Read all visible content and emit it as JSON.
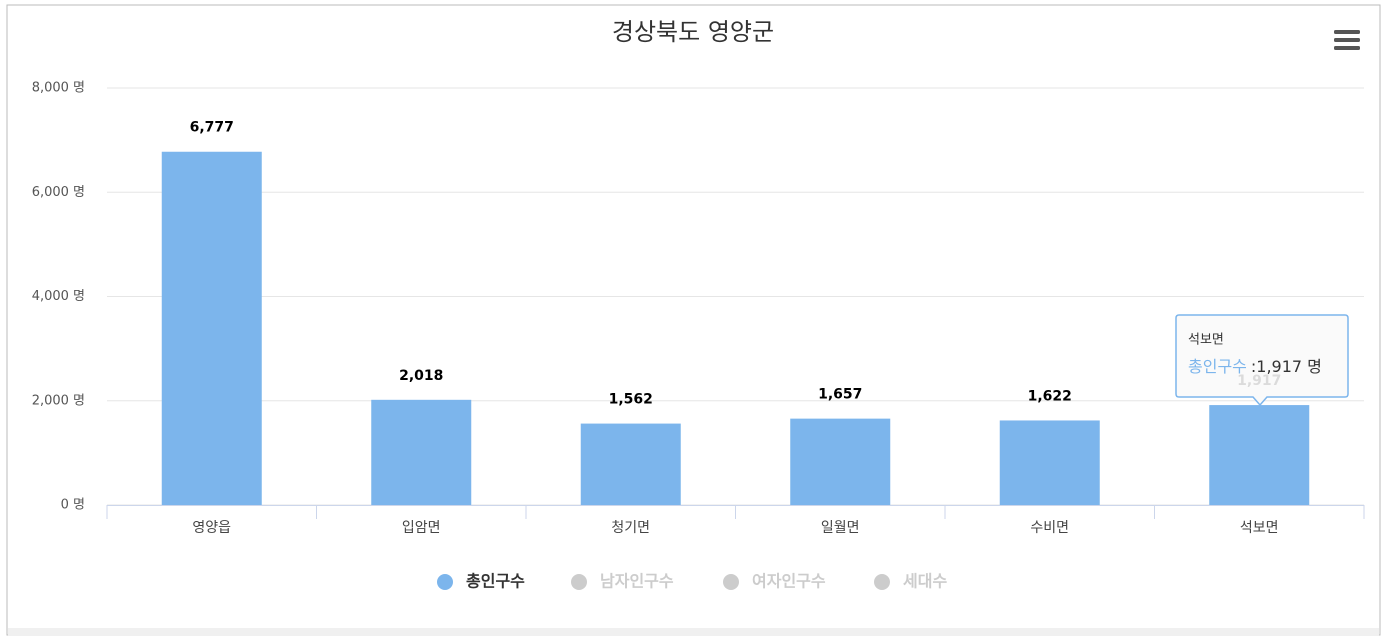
{
  "chart_data": {
    "type": "bar",
    "title": "경상북도 영양군",
    "categories": [
      "영양읍",
      "입암면",
      "청기면",
      "일월면",
      "수비면",
      "석보면"
    ],
    "series": [
      {
        "name": "총인구수",
        "color": "#7cb5ec",
        "values": [
          6777,
          2018,
          1562,
          1657,
          1622,
          1917
        ],
        "value_labels": [
          "6,777",
          "2,018",
          "1,562",
          "1,657",
          "1,622",
          "1,917"
        ]
      }
    ],
    "hidden_series": [
      {
        "name": "남자인구수"
      },
      {
        "name": "여자인구수"
      },
      {
        "name": "세대수"
      }
    ],
    "ylim": [
      0,
      8000
    ],
    "yticks": [
      {
        "value": 0,
        "label": "0 명"
      },
      {
        "value": 2000,
        "label": "2,000 명"
      },
      {
        "value": 4000,
        "label": "4,000 명"
      },
      {
        "value": 6000,
        "label": "6,000 명"
      },
      {
        "value": 8000,
        "label": "8,000 명"
      }
    ],
    "grid": true,
    "tooltip": {
      "title": "석보면",
      "series": "총인구수",
      "value_label": ":1,917 명"
    }
  }
}
